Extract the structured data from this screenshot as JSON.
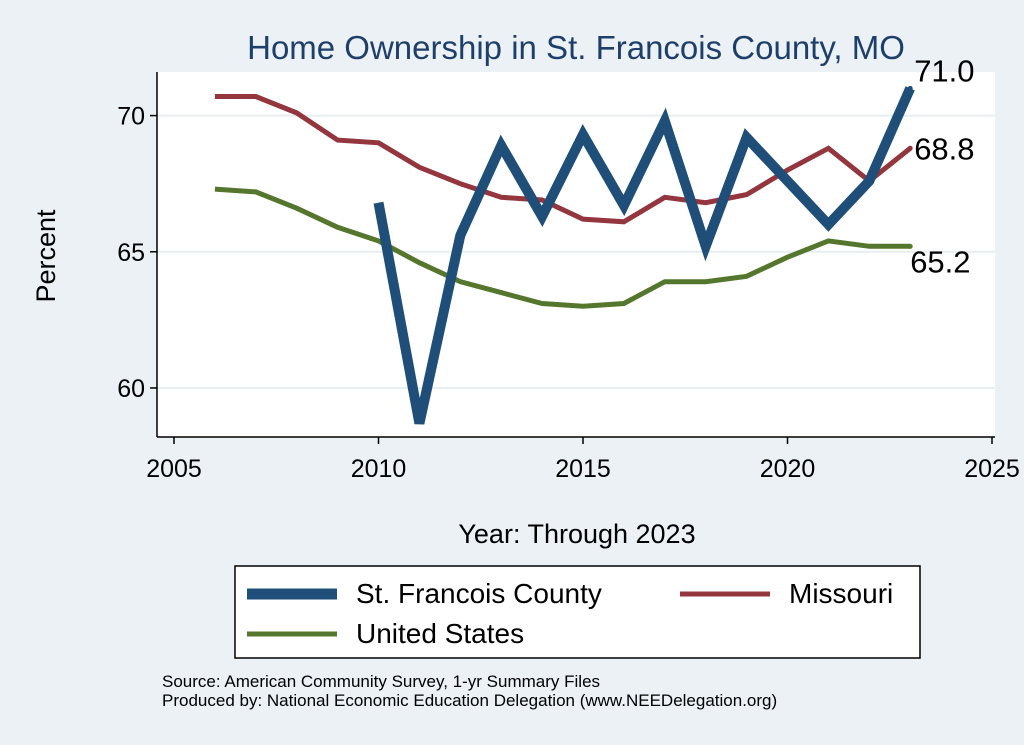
{
  "chart_data": {
    "type": "line",
    "title": "Home Ownership in St. Francois County, MO",
    "xlabel": "Year: Through 2023",
    "ylabel": "Percent",
    "xlim": [
      2005,
      2025
    ],
    "ylim": [
      58.2,
      71.6
    ],
    "xticks": [
      2005,
      2010,
      2015,
      2020,
      2025
    ],
    "yticks": [
      60,
      65,
      70
    ],
    "grid": true,
    "legend_position": "bottom",
    "series": [
      {
        "name": "St. Francois County",
        "color": "#1f4e79",
        "x": [
          2010,
          2011,
          2012,
          2013,
          2014,
          2015,
          2016,
          2017,
          2018,
          2019,
          2020,
          2021,
          2022,
          2023
        ],
        "values": [
          66.8,
          58.7,
          65.6,
          68.9,
          66.3,
          69.3,
          66.7,
          69.8,
          65.2,
          69.2,
          67.6,
          66.0,
          67.6,
          71.0
        ],
        "end_label": "71.0"
      },
      {
        "name": "Missouri",
        "color": "#93363e",
        "x": [
          2006,
          2007,
          2008,
          2009,
          2010,
          2011,
          2012,
          2013,
          2014,
          2015,
          2016,
          2017,
          2018,
          2019,
          2020,
          2021,
          2022,
          2023
        ],
        "values": [
          70.7,
          70.7,
          70.1,
          69.1,
          69.0,
          68.1,
          67.5,
          67.0,
          66.9,
          66.2,
          66.1,
          67.0,
          66.8,
          67.1,
          68.0,
          68.8,
          67.6,
          68.8
        ],
        "end_label": "68.8"
      },
      {
        "name": "United States",
        "color": "#55772d",
        "x": [
          2006,
          2007,
          2008,
          2009,
          2010,
          2011,
          2012,
          2013,
          2014,
          2015,
          2016,
          2017,
          2018,
          2019,
          2020,
          2021,
          2022,
          2023
        ],
        "values": [
          67.3,
          67.2,
          66.6,
          65.9,
          65.4,
          64.6,
          63.9,
          63.5,
          63.1,
          63.0,
          63.1,
          63.9,
          63.9,
          64.1,
          64.8,
          65.4,
          65.2,
          65.2
        ],
        "end_label": "65.2"
      }
    ]
  },
  "footer": {
    "source": "Source: American Community Survey, 1-yr Summary Files",
    "produced_by": "Produced by: National Economic Education Delegation (www.NEEDelegation.org)"
  }
}
